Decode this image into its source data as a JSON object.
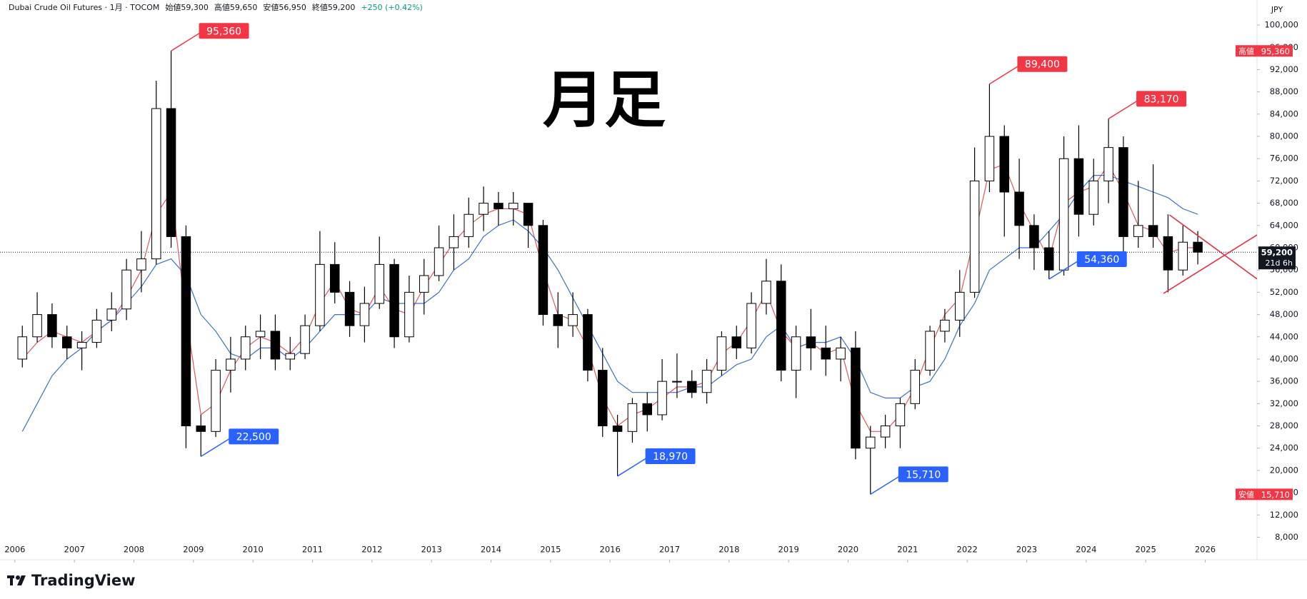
{
  "chart_data": {
    "type": "candlestick",
    "symbol": "Dubai Crude Oil Futures · 1月 · TOCOM",
    "ohlc_labels": [
      "始値59,300",
      "高値59,650",
      "安値56,950",
      "終値59,200"
    ],
    "change": "+250 (+0.42%)",
    "currency": "JPY",
    "annotation": "月足",
    "branding": "TradingView",
    "up_color": "#ffffff",
    "down_color": "#000000",
    "outline_color": "#000000",
    "x": [
      2006.125,
      2006.375,
      2006.625,
      2006.875,
      2007.125,
      2007.375,
      2007.625,
      2007.875,
      2008.125,
      2008.375,
      2008.625,
      2008.875,
      2009.125,
      2009.375,
      2009.625,
      2009.875,
      2010.125,
      2010.375,
      2010.625,
      2010.875,
      2011.125,
      2011.375,
      2011.625,
      2011.875,
      2012.125,
      2012.375,
      2012.625,
      2012.875,
      2013.125,
      2013.375,
      2013.625,
      2013.875,
      2014.125,
      2014.375,
      2014.625,
      2014.875,
      2015.125,
      2015.375,
      2015.625,
      2015.875,
      2016.125,
      2016.375,
      2016.625,
      2016.875,
      2017.125,
      2017.375,
      2017.625,
      2017.875,
      2018.125,
      2018.375,
      2018.625,
      2018.875,
      2019.125,
      2019.375,
      2019.625,
      2019.875,
      2020.125,
      2020.375,
      2020.625,
      2020.875,
      2021.125,
      2021.375,
      2021.625,
      2021.875,
      2022.125,
      2022.375,
      2022.625,
      2022.875,
      2023.125,
      2023.375,
      2023.625,
      2023.875,
      2024.125,
      2024.375,
      2024.625,
      2024.875,
      2025.125,
      2025.375,
      2025.625,
      2025.875
    ],
    "open": [
      40000,
      44000,
      48000,
      44000,
      42000,
      43000,
      47000,
      49000,
      56000,
      58000,
      85000,
      62000,
      28000,
      27000,
      38000,
      40000,
      44000,
      45000,
      40000,
      41000,
      46000,
      57000,
      52000,
      46000,
      50000,
      57000,
      44000,
      52000,
      55000,
      60000,
      62000,
      66000,
      68000,
      67000,
      68000,
      64000,
      48000,
      46000,
      48000,
      38000,
      28000,
      27000,
      32000,
      30000,
      36000,
      36000,
      34000,
      38000,
      44000,
      42000,
      50000,
      54000,
      38000,
      44000,
      42000,
      40000,
      42000,
      24000,
      26000,
      28000,
      32000,
      38000,
      45000,
      47000,
      52000,
      72000,
      80000,
      70000,
      64000,
      60000,
      56000,
      76000,
      66000,
      72000,
      78000,
      62000,
      64000,
      62000,
      56000,
      61000
    ],
    "high": [
      46000,
      52000,
      50000,
      46000,
      45000,
      49000,
      52000,
      58000,
      63000,
      90000,
      95360,
      64000,
      30000,
      40000,
      44000,
      46000,
      48000,
      48000,
      44000,
      48000,
      63000,
      61000,
      54000,
      53000,
      62000,
      58000,
      55000,
      58000,
      64000,
      66000,
      69000,
      71000,
      70000,
      70000,
      68000,
      65000,
      52000,
      52000,
      49000,
      42000,
      30000,
      33000,
      34000,
      40000,
      41000,
      38000,
      40000,
      45000,
      46000,
      52000,
      58000,
      57000,
      46000,
      49000,
      46000,
      44000,
      45000,
      28000,
      30000,
      33000,
      40000,
      46000,
      49000,
      56000,
      78000,
      89400,
      82000,
      76000,
      66000,
      63000,
      80000,
      82000,
      76000,
      83170,
      80000,
      72000,
      75000,
      66000,
      64000,
      63000
    ],
    "low": [
      38500,
      43000,
      42000,
      40000,
      38000,
      42000,
      45000,
      47000,
      52000,
      57000,
      60000,
      24000,
      22500,
      26000,
      34000,
      38000,
      40000,
      38000,
      38000,
      40000,
      45000,
      50000,
      44000,
      43000,
      49000,
      42000,
      43000,
      48000,
      54000,
      56000,
      60000,
      63000,
      64000,
      64000,
      60000,
      46000,
      42000,
      44000,
      36000,
      26000,
      18970,
      25000,
      27000,
      29000,
      33000,
      33000,
      32000,
      37000,
      40000,
      41000,
      48000,
      36000,
      33000,
      38000,
      37000,
      36000,
      22000,
      15710,
      24000,
      24000,
      31000,
      37000,
      43000,
      44000,
      51000,
      70000,
      62000,
      58000,
      56000,
      54360,
      55000,
      62000,
      64000,
      68000,
      58000,
      60000,
      60000,
      52000,
      55000,
      57000
    ],
    "close": [
      44000,
      48000,
      44000,
      42000,
      43000,
      47000,
      49000,
      56000,
      58000,
      85000,
      62000,
      28000,
      27000,
      38000,
      40000,
      44000,
      45000,
      40000,
      41000,
      46000,
      57000,
      52000,
      46000,
      50000,
      57000,
      44000,
      52000,
      55000,
      60000,
      62000,
      66000,
      68000,
      67000,
      68000,
      64000,
      48000,
      46000,
      48000,
      38000,
      28000,
      27000,
      32000,
      30000,
      36000,
      36000,
      34000,
      38000,
      44000,
      42000,
      50000,
      54000,
      38000,
      44000,
      42000,
      40000,
      42000,
      24000,
      26000,
      28000,
      32000,
      38000,
      45000,
      47000,
      52000,
      72000,
      80000,
      70000,
      64000,
      60000,
      56000,
      76000,
      66000,
      72000,
      78000,
      62000,
      64000,
      62000,
      56000,
      61000,
      59200
    ],
    "ma_lines": [
      {
        "color": "#e0575b",
        "values": [
          40000,
          43000,
          45000,
          44000,
          43000,
          45000,
          47000,
          51000,
          56000,
          66000,
          70000,
          48000,
          30000,
          32000,
          38000,
          42000,
          44000,
          43000,
          41000,
          44000,
          50000,
          54000,
          49000,
          48000,
          53000,
          49000,
          48000,
          53000,
          57000,
          61000,
          64000,
          66000,
          67000,
          67000,
          66000,
          56000,
          48000,
          47000,
          42000,
          33000,
          28000,
          30000,
          31000,
          33000,
          35000,
          35000,
          36000,
          41000,
          43000,
          47000,
          52000,
          45000,
          42000,
          43000,
          41000,
          42000,
          32000,
          27000,
          27000,
          30000,
          35000,
          42000,
          48000,
          51000,
          62000,
          74000,
          75000,
          68000,
          63000,
          58000,
          68000,
          70000,
          71000,
          75000,
          70000,
          64000,
          63000,
          59000,
          60000,
          60000
        ]
      },
      {
        "color": "#3d6fd6",
        "values": [
          27000,
          32000,
          37000,
          40000,
          42000,
          45000,
          47000,
          50000,
          53000,
          57000,
          58000,
          55000,
          48000,
          45000,
          41000,
          40000,
          42000,
          42000,
          40000,
          42000,
          45000,
          48000,
          48000,
          48000,
          51000,
          50000,
          50000,
          50000,
          52000,
          56000,
          58000,
          62000,
          64000,
          65000,
          63000,
          60000,
          56000,
          51000,
          46000,
          41000,
          36000,
          34000,
          34000,
          34000,
          34000,
          35000,
          35000,
          37000,
          39000,
          40000,
          44000,
          46000,
          42000,
          43000,
          43000,
          44000,
          40000,
          34000,
          33000,
          33000,
          35000,
          36000,
          40000,
          46000,
          50000,
          56000,
          58000,
          60000,
          60000,
          63000,
          66000,
          70000,
          73000,
          73000,
          72000,
          71000,
          70000,
          69000,
          67000,
          66000
        ]
      }
    ],
    "trendlines": [
      {
        "color": "#e5303f",
        "x": [
          2025.4,
          2026.87
        ],
        "y": [
          65900,
          54400
        ]
      },
      {
        "color": "#e5303f",
        "x": [
          2025.3,
          2026.87
        ],
        "y": [
          51800,
          62300
        ]
      }
    ],
    "price_labels": [
      {
        "x": 2008.625,
        "value": 95360,
        "label": "95,360",
        "color": "#f23645"
      },
      {
        "x": 2009.125,
        "value": 22500,
        "label": "22,500",
        "color": "#2962ff"
      },
      {
        "x": 2016.125,
        "value": 18970,
        "label": "18,970",
        "color": "#2962ff"
      },
      {
        "x": 2020.375,
        "value": 15710,
        "label": "15,710",
        "color": "#2962ff"
      },
      {
        "x": 2022.375,
        "value": 89400,
        "label": "89,400",
        "color": "#f23645"
      },
      {
        "x": 2023.375,
        "value": 54360,
        "label": "54,360",
        "color": "#2962ff"
      },
      {
        "x": 2024.375,
        "value": 83170,
        "label": "83,170",
        "color": "#f23645"
      }
    ],
    "axis_tags": [
      {
        "prefix": "高値",
        "value": 95360,
        "label": "95,360",
        "color": "#f23645"
      },
      {
        "prefix": "安値",
        "value": 15710,
        "label": "15,710",
        "color": "#f23645"
      }
    ],
    "last_price": {
      "value": 59200,
      "label": "59,200",
      "countdown": "21d 6h"
    },
    "xlim": [
      2005.75,
      2026.87
    ],
    "xticks": [
      2006,
      2007,
      2008,
      2009,
      2010,
      2011,
      2012,
      2013,
      2014,
      2015,
      2016,
      2017,
      2018,
      2019,
      2020,
      2021,
      2022,
      2023,
      2024,
      2025,
      2026
    ],
    "ylim": [
      7550,
      104500
    ],
    "yticks": [
      {
        "value": 8000,
        "label": "8,000"
      },
      {
        "value": 12000,
        "label": "12,000"
      },
      {
        "value": 16000,
        "label": "16,000"
      },
      {
        "value": 20000,
        "label": "20,000"
      },
      {
        "value": 24000,
        "label": "24,000"
      },
      {
        "value": 28000,
        "label": "28,000"
      },
      {
        "value": 32000,
        "label": "32,000"
      },
      {
        "value": 36000,
        "label": "36,000"
      },
      {
        "value": 40000,
        "label": "40,000"
      },
      {
        "value": 44000,
        "label": "44,000"
      },
      {
        "value": 48000,
        "label": "48,000"
      },
      {
        "value": 52000,
        "label": "52,000"
      },
      {
        "value": 56000,
        "label": "56,000"
      },
      {
        "value": 60000,
        "label": "60,000"
      },
      {
        "value": 64000,
        "label": "64,000"
      },
      {
        "value": 68000,
        "label": "68,000"
      },
      {
        "value": 72000,
        "label": "72,000"
      },
      {
        "value": 76000,
        "label": "76,000"
      },
      {
        "value": 80000,
        "label": "80,000"
      },
      {
        "value": 84000,
        "label": "84,000"
      },
      {
        "value": 88000,
        "label": "88,000"
      },
      {
        "value": 92000,
        "label": "92,000"
      },
      {
        "value": 96000,
        "label": "96,000"
      },
      {
        "value": 100000,
        "label": "100,000"
      }
    ],
    "grid": false
  }
}
